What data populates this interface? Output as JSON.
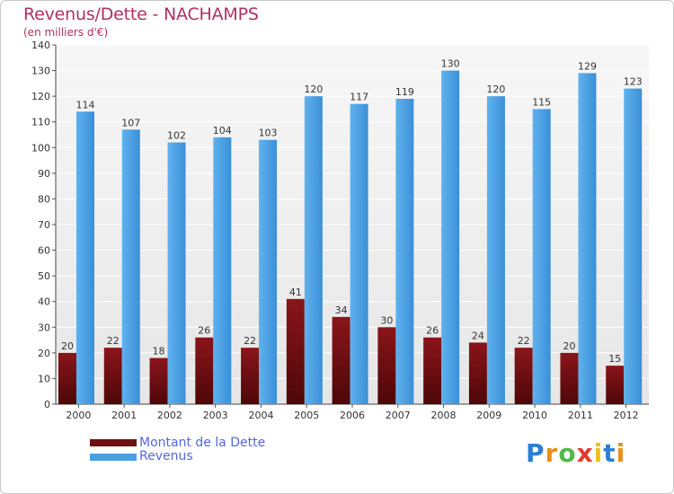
{
  "header": {
    "title": "Revenus/Dette - NACHAMPS",
    "subtitle": "(en milliers d'€)"
  },
  "chart_data": {
    "type": "bar",
    "categories": [
      "2000",
      "2001",
      "2002",
      "2003",
      "2004",
      "2005",
      "2006",
      "2007",
      "2008",
      "2009",
      "2010",
      "2011",
      "2012"
    ],
    "series": [
      {
        "name": "Montant de la Dette",
        "color": "#6e0f12",
        "values": [
          20,
          22,
          18,
          26,
          22,
          41,
          34,
          30,
          26,
          24,
          22,
          20,
          15
        ]
      },
      {
        "name": "Revenus",
        "color": "#4a9fe0",
        "values": [
          114,
          107,
          102,
          104,
          103,
          120,
          117,
          119,
          130,
          120,
          115,
          129,
          123
        ]
      }
    ],
    "title": "Revenus/Dette - NACHAMPS",
    "subtitle": "(en milliers d'€)",
    "ylim": [
      0,
      140
    ],
    "yticks": [
      0,
      10,
      20,
      30,
      40,
      50,
      60,
      70,
      80,
      90,
      100,
      110,
      120,
      130,
      140
    ],
    "grid": true,
    "legend_position": "bottom-left"
  },
  "legend": {
    "items": [
      {
        "label": "Montant de la Dette",
        "color": "#6e0f12"
      },
      {
        "label": "Revenus",
        "color": "#4a9fe0"
      }
    ]
  },
  "logo": {
    "letters": [
      "P",
      "r",
      "o",
      "x",
      "i",
      "t",
      "i"
    ],
    "colors": [
      "#2c7fd6",
      "#e8901c",
      "#54b848",
      "#e23a2c",
      "#f0c020",
      "#2c7fd6",
      "#e8901c"
    ]
  }
}
